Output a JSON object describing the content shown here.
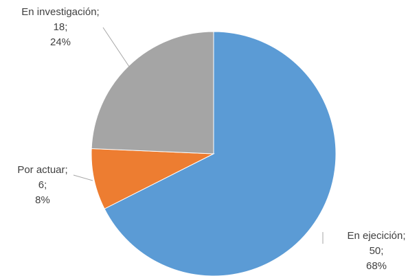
{
  "chart_data": {
    "type": "pie",
    "title": "",
    "legend": "none",
    "slices": [
      {
        "label": "En ejecición",
        "value": 50,
        "percent": "68%",
        "color": "#5b9bd5"
      },
      {
        "label": "Por actuar",
        "value": 6,
        "percent": "8%",
        "color": "#ed7d31"
      },
      {
        "label": "En investigación",
        "value": 18,
        "percent": "24%",
        "color": "#a5a5a5"
      }
    ]
  }
}
